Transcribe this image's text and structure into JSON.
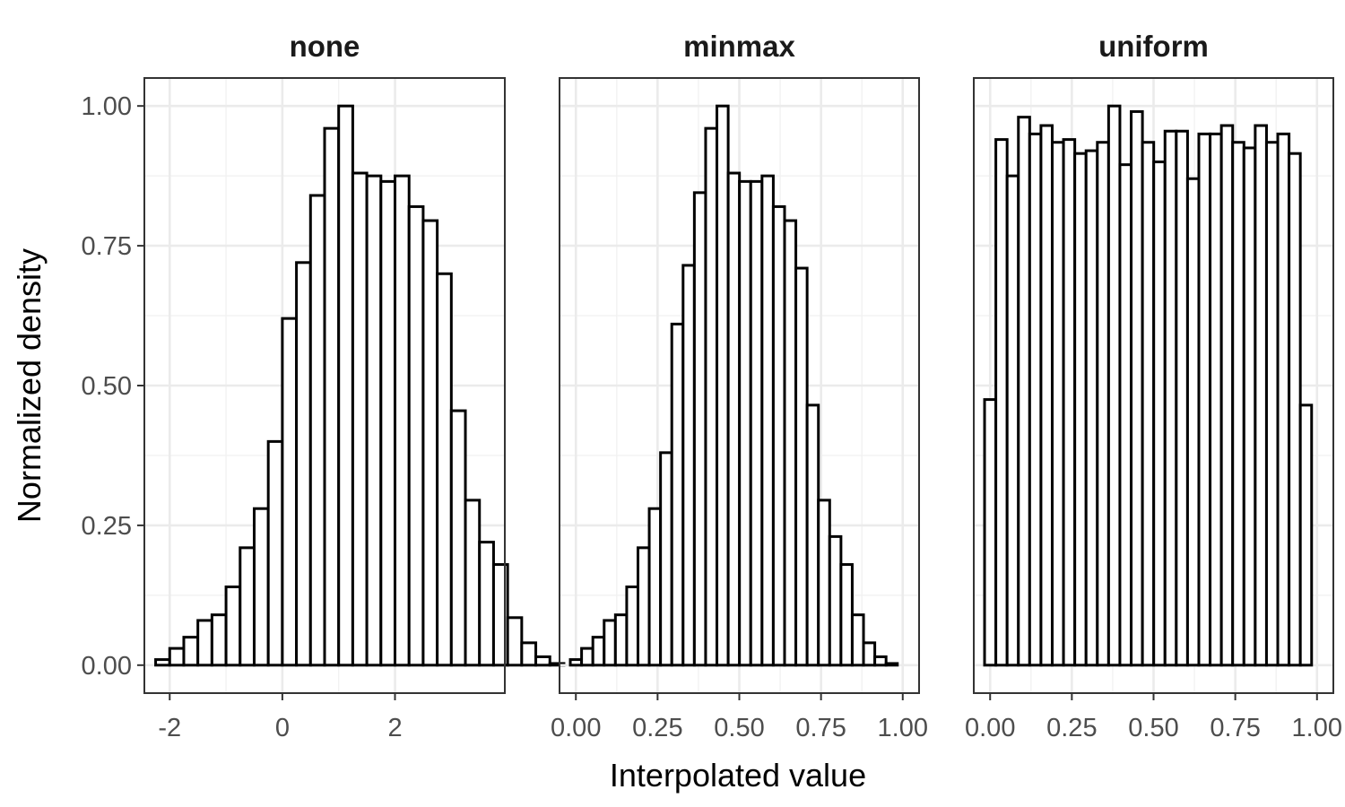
{
  "chart_data": {
    "type": "bar",
    "ylabel": "Normalized density",
    "xlabel": "Interpolated value",
    "ylim": [
      -0.05,
      1.05
    ],
    "yticks": [
      0.0,
      0.25,
      0.5,
      0.75,
      1.0
    ],
    "ytick_labels": [
      "0.00",
      "0.25",
      "0.50",
      "0.75",
      "1.00"
    ],
    "grid": true,
    "legend": "none",
    "panels": [
      {
        "title": "none",
        "xlim": [
          -2.45,
          3.95
        ],
        "xticks": [
          -2,
          0,
          2
        ],
        "xtick_labels": [
          "-2",
          "0",
          "2"
        ],
        "bin_start": -2.25,
        "bin_width": 0.25,
        "values": [
          0.01,
          0.03,
          0.05,
          0.08,
          0.09,
          0.14,
          0.21,
          0.28,
          0.4,
          0.62,
          0.72,
          0.84,
          0.96,
          1.0,
          0.88,
          0.875,
          0.865,
          0.875,
          0.82,
          0.795,
          0.7,
          0.455,
          0.295,
          0.22,
          0.18,
          0.085,
          0.04,
          0.015,
          0.003
        ]
      },
      {
        "title": "minmax",
        "xlim": [
          -0.05,
          1.05
        ],
        "xticks": [
          0.0,
          0.25,
          0.5,
          0.75,
          1.0
        ],
        "xtick_labels": [
          "0.00",
          "0.25",
          "0.50",
          "0.75",
          "1.00"
        ],
        "bin_start": -0.017,
        "bin_width": 0.0345,
        "values": [
          0.01,
          0.03,
          0.05,
          0.08,
          0.09,
          0.14,
          0.21,
          0.28,
          0.38,
          0.61,
          0.715,
          0.845,
          0.96,
          1.0,
          0.88,
          0.865,
          0.865,
          0.875,
          0.82,
          0.795,
          0.71,
          0.465,
          0.295,
          0.23,
          0.18,
          0.09,
          0.04,
          0.015,
          0.003
        ]
      },
      {
        "title": "uniform",
        "xlim": [
          -0.05,
          1.05
        ],
        "xticks": [
          0.0,
          0.25,
          0.5,
          0.75,
          1.0
        ],
        "xtick_labels": [
          "0.00",
          "0.25",
          "0.50",
          "0.75",
          "1.00"
        ],
        "bin_start": -0.017,
        "bin_width": 0.0345,
        "values": [
          0.475,
          0.94,
          0.875,
          0.98,
          0.95,
          0.965,
          0.935,
          0.94,
          0.915,
          0.92,
          0.935,
          1.0,
          0.895,
          0.99,
          0.935,
          0.9,
          0.955,
          0.955,
          0.87,
          0.95,
          0.95,
          0.965,
          0.935,
          0.925,
          0.965,
          0.935,
          0.95,
          0.915,
          0.465
        ]
      }
    ]
  }
}
